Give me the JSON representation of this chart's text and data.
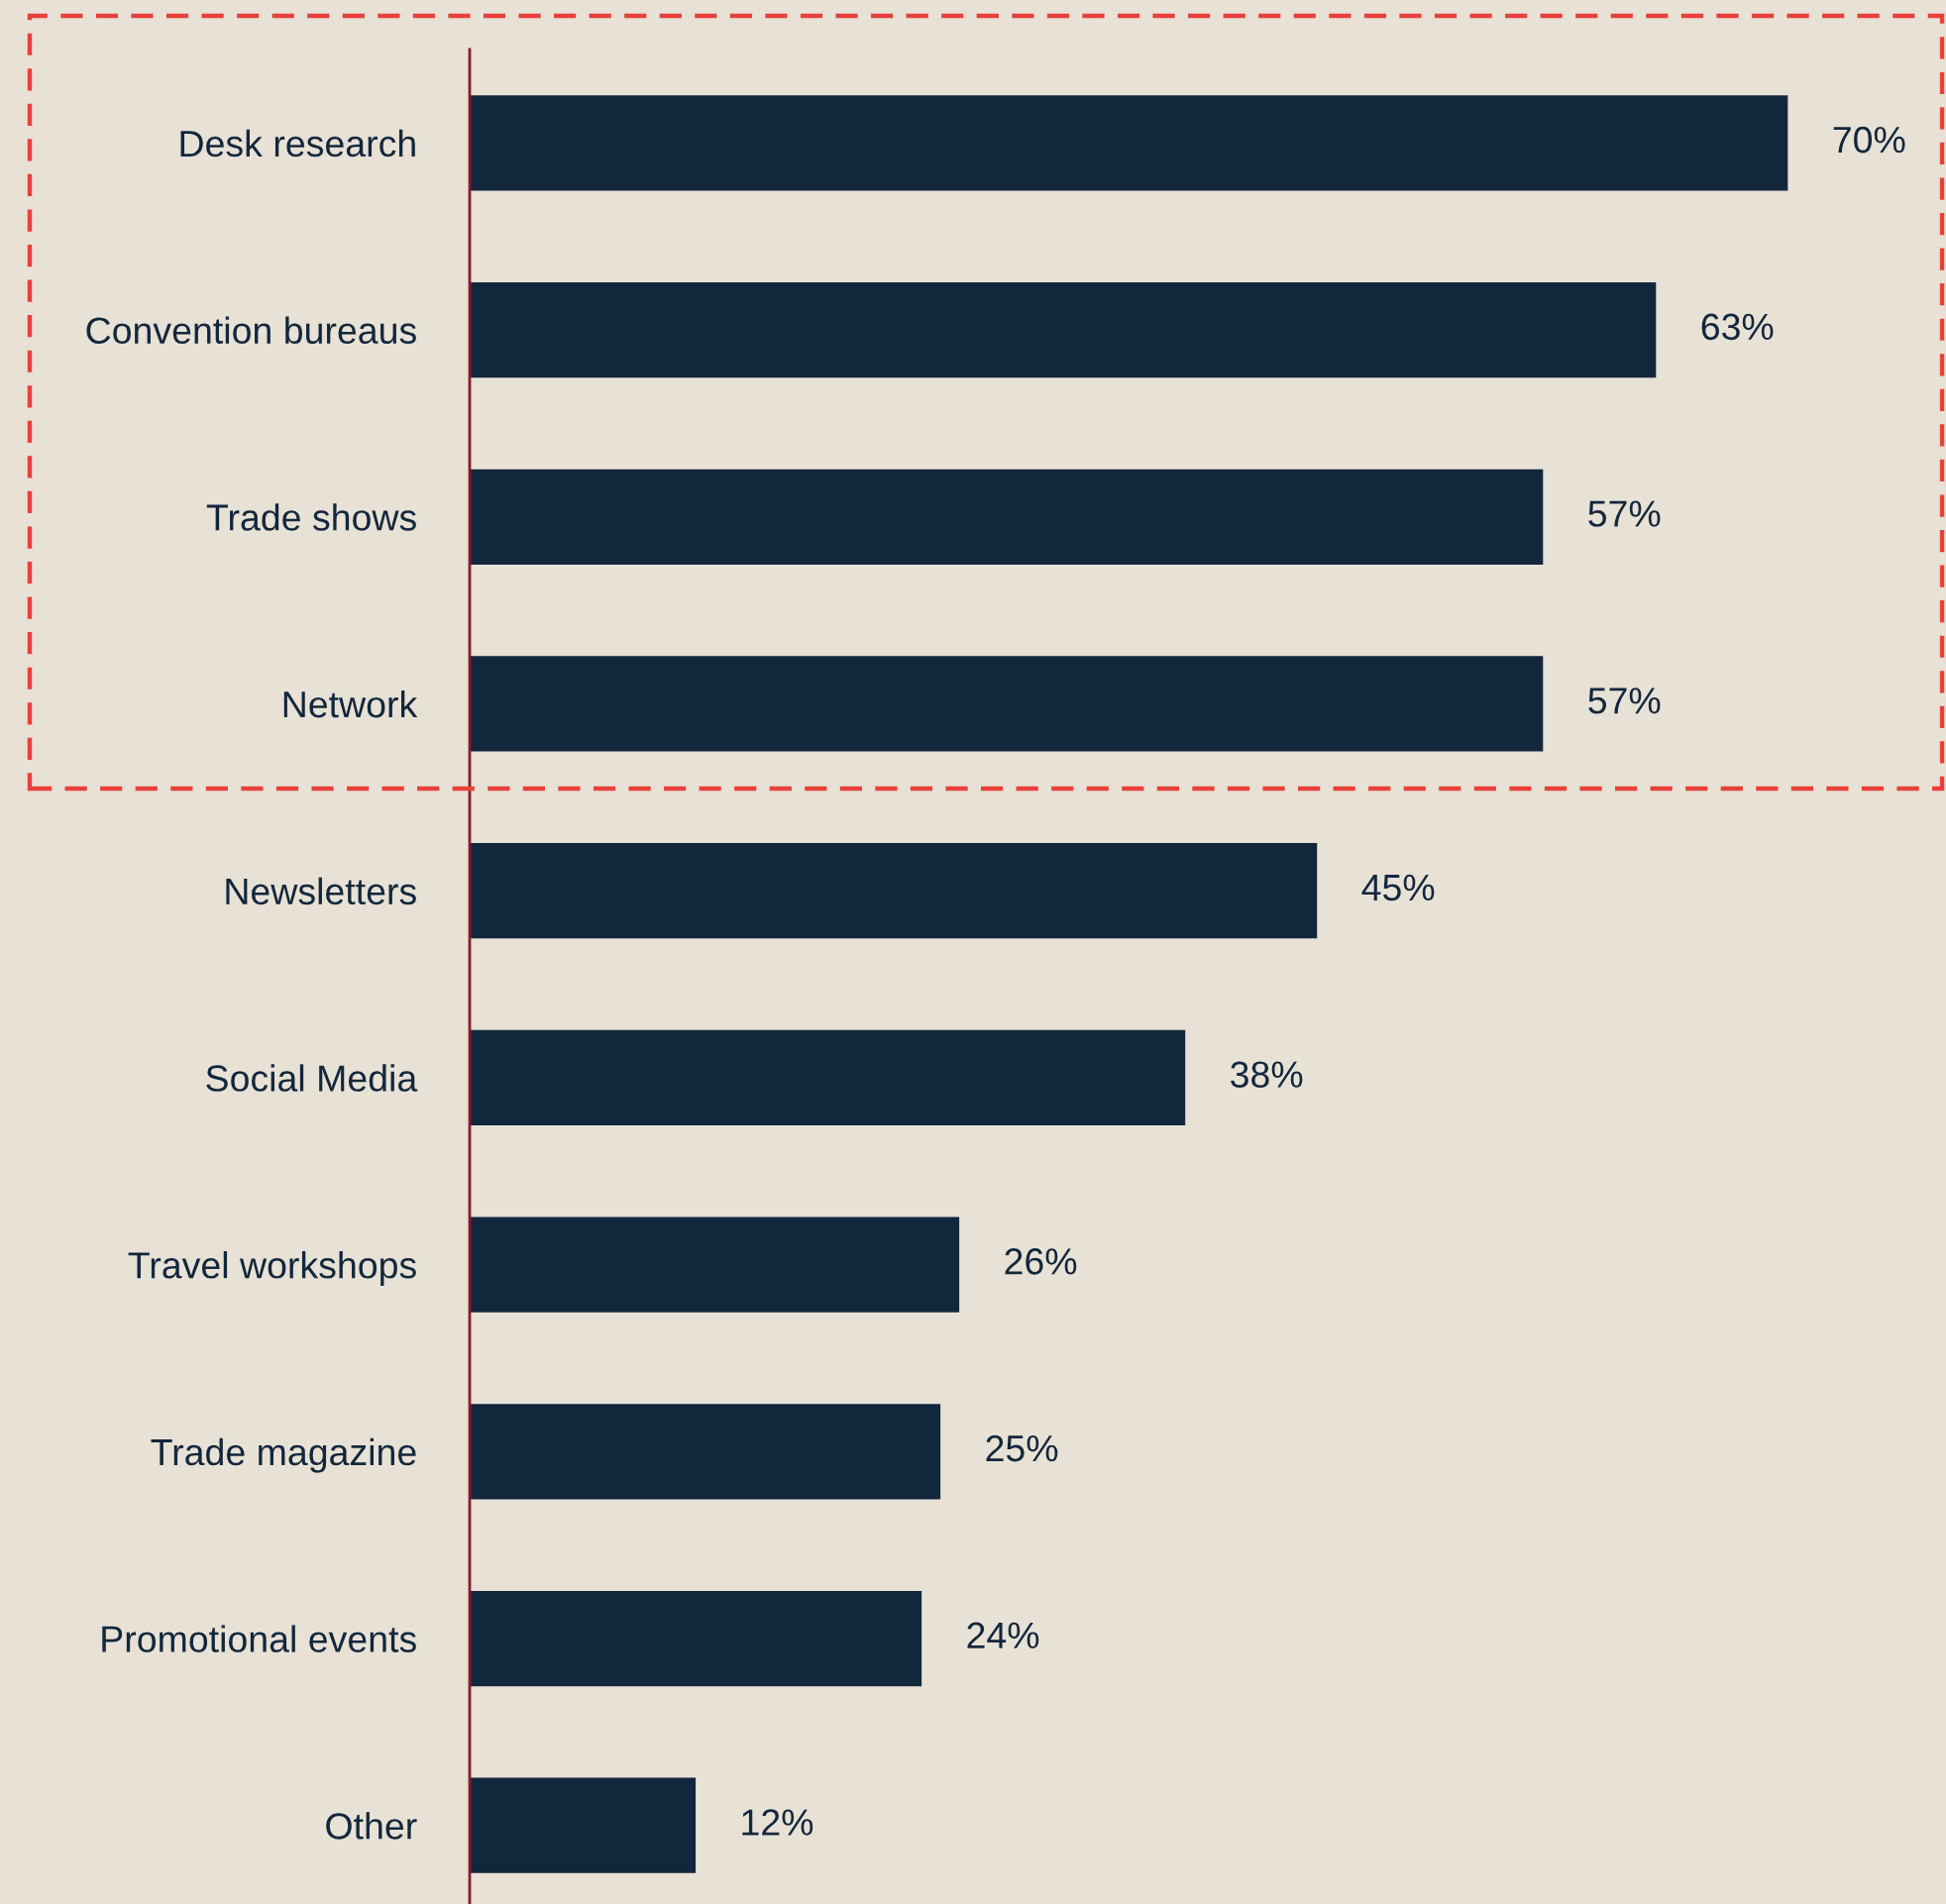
{
  "chart_data": {
    "type": "bar",
    "orientation": "horizontal",
    "categories": [
      "Desk research",
      "Convention bureaus",
      "Trade shows",
      "Network",
      "Newsletters",
      "Social Media",
      "Travel workshops",
      "Trade magazine",
      "Promotional events",
      "Other"
    ],
    "values": [
      70,
      63,
      57,
      57,
      45,
      38,
      26,
      25,
      24,
      12
    ],
    "value_labels": [
      "70%",
      "63%",
      "57%",
      "57%",
      "45%",
      "38%",
      "26%",
      "25%",
      "24%",
      "12%"
    ],
    "color": "#13273c",
    "grid": false,
    "legend": false
  }
}
